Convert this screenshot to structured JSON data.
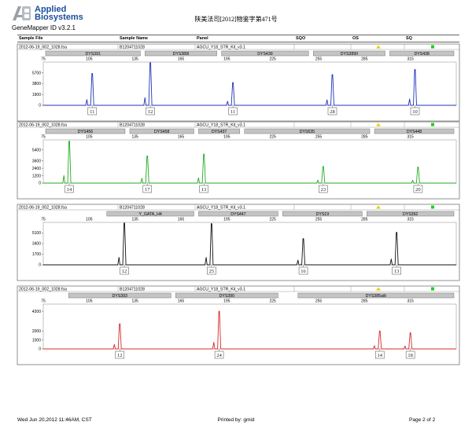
{
  "header": {
    "brand_line1": "Applied",
    "brand_line2": "Biosystems",
    "product": "GeneMapper ID v3.2.1",
    "doc_title": "陕美法司[2012]物鉴字第471号"
  },
  "columns": [
    "Sample File",
    "Sample Name",
    "Panel",
    "SQO",
    "OS",
    "SQ"
  ],
  "colors": {
    "blue": "#2233bb",
    "green": "#22aa22",
    "black": "#111111",
    "red": "#d42a2a",
    "marker_fill": "#c4c4c4",
    "sqo_flag": "#e8d000",
    "sq_flag": "#22cc22"
  },
  "chart_data": [
    {
      "type": "line",
      "row": {
        "sample_file": "2012-06-19_002_1028.fsa",
        "sample_name": "B1204711028",
        "panel": "AGCU_Y18_STR_Kit_v3.1"
      },
      "color": "blue",
      "x_ticks": [
        75,
        105,
        135,
        165,
        195,
        225,
        255,
        285,
        315
      ],
      "xlim": [
        75,
        345
      ],
      "y_ticks": [
        0,
        1900,
        3800,
        5700
      ],
      "ylim": [
        0,
        7600
      ],
      "series": [
        {
          "name": "DYS391",
          "range": [
            75,
            140
          ],
          "peaks": [
            {
              "x": 107,
              "height": 5600,
              "allele": "11"
            }
          ]
        },
        {
          "name": "DYS389I",
          "range": [
            140,
            190
          ],
          "peaks": [
            {
              "x": 145,
              "height": 7500,
              "allele": "12"
            }
          ]
        },
        {
          "name": "DYS439",
          "range": [
            190,
            250
          ],
          "peaks": [
            {
              "x": 199,
              "height": 4000,
              "allele": "11"
            }
          ]
        },
        {
          "name": "DYS389II",
          "range": [
            250,
            300
          ],
          "peaks": [
            {
              "x": 264,
              "height": 5400,
              "allele": "28"
            }
          ]
        },
        {
          "name": "DYS438",
          "range": [
            300,
            345
          ],
          "peaks": [
            {
              "x": 318,
              "height": 6300,
              "allele": "10"
            }
          ]
        }
      ]
    },
    {
      "type": "line",
      "row": {
        "sample_file": "2012-06-19_002_1028.fsa",
        "sample_name": "B1204711028",
        "panel": "AGCU_Y18_STR_Kit_v3.1"
      },
      "color": "green",
      "x_ticks": [
        75,
        105,
        135,
        165,
        195,
        225,
        255,
        285,
        315
      ],
      "xlim": [
        75,
        345
      ],
      "y_ticks": [
        0,
        1200,
        2400,
        3600,
        5400
      ],
      "ylim": [
        0,
        7000
      ],
      "series": [
        {
          "name": "DYS456",
          "range": [
            75,
            130
          ],
          "peaks": [
            {
              "x": 92,
              "height": 6800,
              "allele": "14"
            }
          ]
        },
        {
          "name": "DYS458",
          "range": [
            130,
            175
          ],
          "peaks": [
            {
              "x": 143,
              "height": 4400,
              "allele": "17"
            }
          ]
        },
        {
          "name": "DYS437",
          "range": [
            175,
            205
          ],
          "peaks": [
            {
              "x": 180,
              "height": 4700,
              "allele": "13"
            }
          ]
        },
        {
          "name": "DYS635",
          "range": [
            205,
            290
          ],
          "peaks": [
            {
              "x": 258,
              "height": 2700,
              "allele": "23"
            }
          ]
        },
        {
          "name": "DYS448",
          "range": [
            290,
            345
          ],
          "peaks": [
            {
              "x": 320,
              "height": 2600,
              "allele": "20"
            }
          ]
        }
      ]
    },
    {
      "type": "line",
      "row": {
        "sample_file": "2012-06-19_002_1028.fsa",
        "sample_name": "B1204711028",
        "panel": "AGCU_Y18_STR_Kit_v3.1"
      },
      "color": "black",
      "x_ticks": [
        75,
        105,
        135,
        165,
        195,
        225,
        255,
        285,
        315
      ],
      "xlim": [
        75,
        345
      ],
      "y_ticks": [
        0,
        1700,
        3400,
        5100
      ],
      "ylim": [
        0,
        6800
      ],
      "series": [
        {
          "name": "Y_GATA_H4",
          "range": [
            115,
            175
          ],
          "peaks": [
            {
              "x": 128,
              "height": 6700,
              "allele": "12"
            }
          ]
        },
        {
          "name": "DYS447",
          "range": [
            175,
            230
          ],
          "peaks": [
            {
              "x": 185,
              "height": 6600,
              "allele": "25"
            }
          ]
        },
        {
          "name": "DYS19",
          "range": [
            230,
            285
          ],
          "peaks": [
            {
              "x": 245,
              "height": 4200,
              "allele": "16"
            }
          ]
        },
        {
          "name": "DYS392",
          "range": [
            285,
            345
          ],
          "peaks": [
            {
              "x": 306,
              "height": 5200,
              "allele": "13"
            }
          ]
        }
      ]
    },
    {
      "type": "line",
      "row": {
        "sample_file": "2012-06-19_002_1028.fsa",
        "sample_name": "B1204711028",
        "panel": "AGCU_Y18_STR_Kit_v3.1"
      },
      "color": "red",
      "x_ticks": [
        75,
        105,
        135,
        165,
        195,
        225,
        255,
        285,
        315
      ],
      "xlim": [
        75,
        345
      ],
      "y_ticks": [
        0,
        1000,
        2000,
        4200
      ],
      "ylim": [
        0,
        5000
      ],
      "series": [
        {
          "name": "DYS393",
          "range": [
            90,
            160
          ],
          "peaks": [
            {
              "x": 125,
              "height": 2800,
              "allele": "12"
            }
          ]
        },
        {
          "name": "DYS390",
          "range": [
            160,
            230
          ],
          "peaks": [
            {
              "x": 190,
              "height": 4200,
              "allele": "24"
            }
          ]
        },
        {
          "name": "DYS385a/b",
          "range": [
            240,
            345
          ],
          "peaks": [
            {
              "x": 295,
              "height": 2000,
              "allele": "14"
            },
            {
              "x": 315,
              "height": 1800,
              "allele": "18"
            }
          ]
        }
      ]
    }
  ],
  "footer": {
    "date": "Wed Jun 20,2012 11:46AM, CST",
    "printed_by": "Printed by: gmid",
    "page": "Page 2 of 2"
  }
}
